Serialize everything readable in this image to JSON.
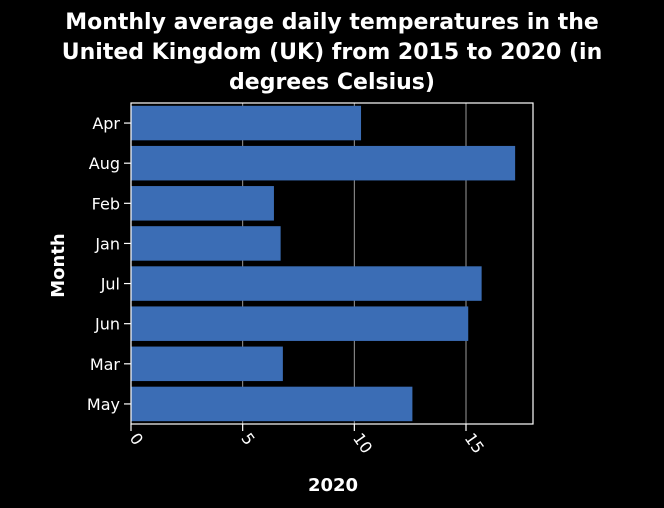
{
  "chart_data": {
    "type": "bar",
    "orientation": "horizontal",
    "title": "Monthly average daily temperatures in the United Kingdom (UK) from 2015 to 2020 (in degrees Celsius)",
    "title_lines": [
      "Monthly average daily temperatures in the",
      "United Kingdom (UK) from 2015 to 2020 (in",
      "degrees Celsius)"
    ],
    "categories": [
      "Apr",
      "Aug",
      "Feb",
      "Jan",
      "Jul",
      "Jun",
      "Mar",
      "May"
    ],
    "values": [
      10.3,
      17.2,
      6.4,
      6.7,
      15.7,
      15.1,
      6.8,
      12.6
    ],
    "xlabel": "2020",
    "ylabel": "Month",
    "xlim": [
      0,
      18
    ],
    "xticks": [
      0,
      5,
      10,
      15
    ],
    "grid": "vertical",
    "legend": "none",
    "colors": {
      "background": "#000000",
      "bar": "#3b6db5",
      "text": "#ffffff",
      "grid": "#9a9a9a",
      "frame": "#ffffff"
    }
  }
}
